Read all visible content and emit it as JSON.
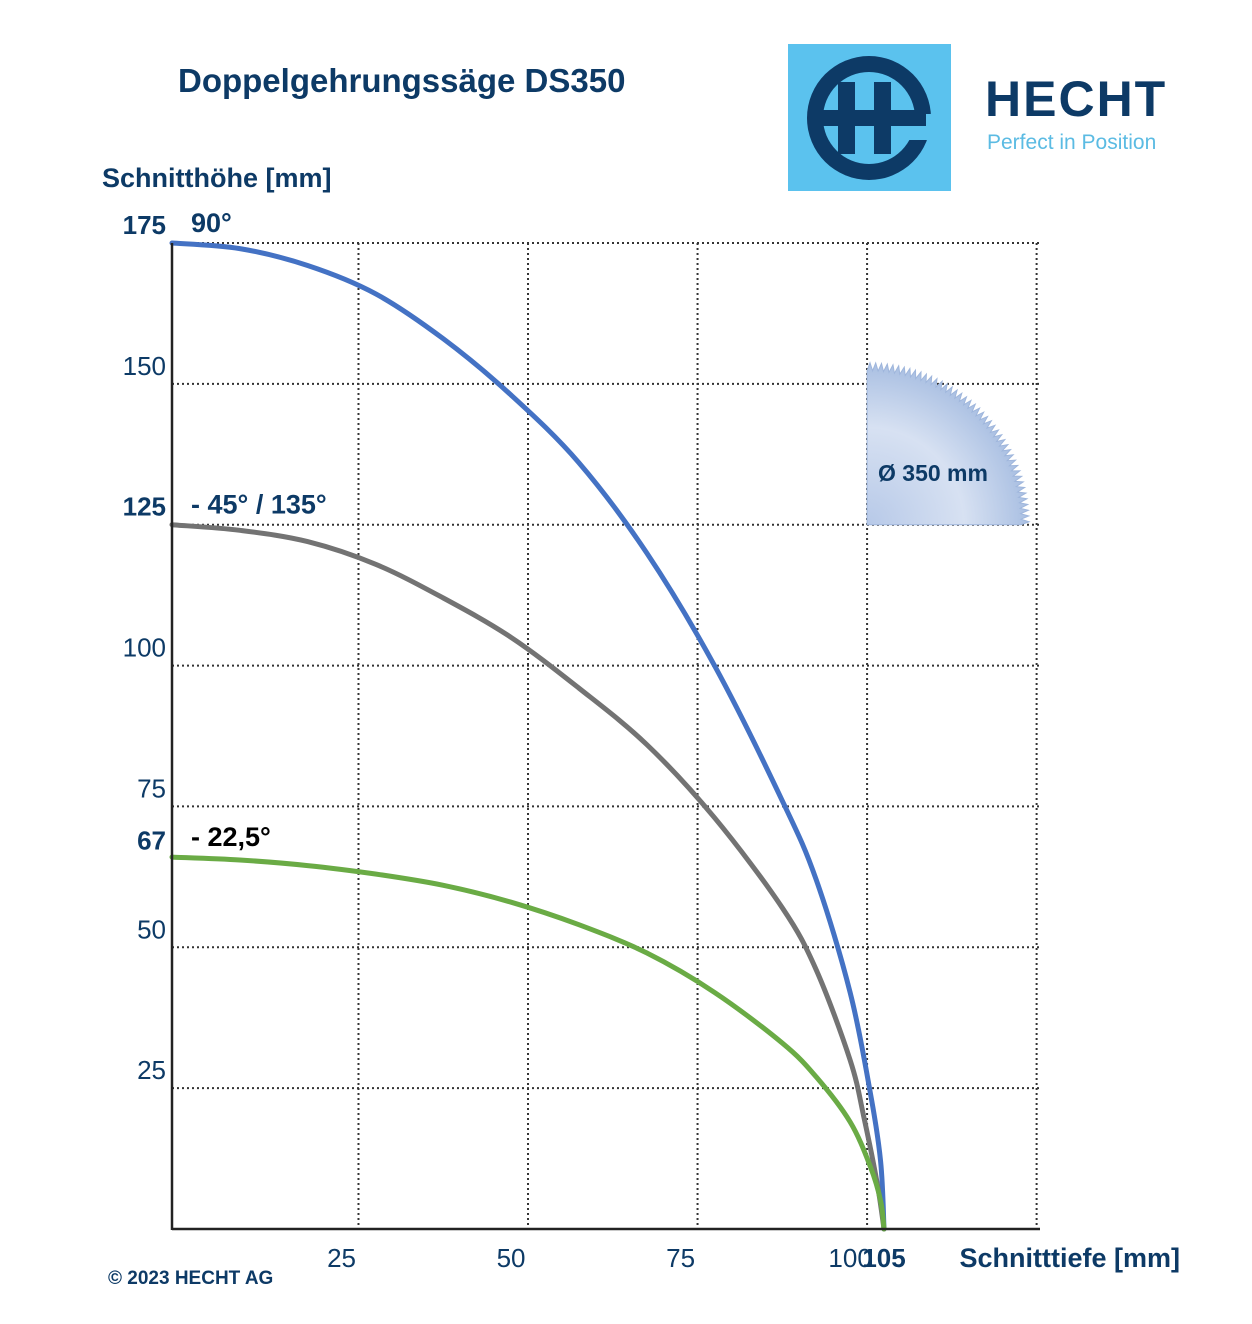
{
  "header": {
    "title": "Doppelgehrungssäge DS350"
  },
  "logo": {
    "icon": "hecht-logo-icon",
    "name": "HECHT",
    "slogan": "Perfect in Position",
    "background_color": "#5bc2ee",
    "mark_color": "#0d3a66"
  },
  "footer": {
    "copyright": "© 2023 HECHT AG"
  },
  "blade": {
    "icon": "saw-blade-icon",
    "label": "Ø 350 mm"
  },
  "chart_data": {
    "type": "line",
    "ylabel": "Schnitthöhe [mm]",
    "xlabel": "Schnitttiefe [mm]",
    "xlim": [
      0,
      128
    ],
    "ylim": [
      0,
      175
    ],
    "x_ticks": [
      {
        "value": 25,
        "label": "25",
        "bold": false
      },
      {
        "value": 50,
        "label": "50",
        "bold": false
      },
      {
        "value": 75,
        "label": "75",
        "bold": false
      },
      {
        "value": 100,
        "label": "100",
        "bold": false
      },
      {
        "value": 105,
        "label": "105",
        "bold": true
      }
    ],
    "y_ticks": [
      {
        "value": 25,
        "label": "25",
        "bold": false
      },
      {
        "value": 50,
        "label": "50",
        "bold": false
      },
      {
        "value": 67,
        "label": "67",
        "bold": true
      },
      {
        "value": 75,
        "label": "75",
        "bold": false
      },
      {
        "value": 100,
        "label": "100",
        "bold": false
      },
      {
        "value": 125,
        "label": "125",
        "bold": true
      },
      {
        "value": 150,
        "label": "150",
        "bold": false
      },
      {
        "value": 175,
        "label": "175",
        "bold": true
      }
    ],
    "grid_x": [
      27.5,
      52.5,
      77.5,
      102.5,
      127.5
    ],
    "grid_y": [
      25,
      50,
      75,
      100,
      125,
      150,
      175
    ],
    "grid": true,
    "series": [
      {
        "name": "90°",
        "color": "#4472c4",
        "label_color": "#0d3a66",
        "points": [
          [
            0,
            175
          ],
          [
            10,
            174
          ],
          [
            20,
            171
          ],
          [
            30,
            166
          ],
          [
            40,
            158
          ],
          [
            50,
            148
          ],
          [
            60,
            136
          ],
          [
            70,
            120
          ],
          [
            80,
            100
          ],
          [
            90,
            76
          ],
          [
            95,
            62
          ],
          [
            100,
            42
          ],
          [
            103,
            24
          ],
          [
            104.5,
            12
          ],
          [
            105,
            0
          ]
        ]
      },
      {
        "name": "- 45° / 135°",
        "color": "#737373",
        "label_color": "#0d3a66",
        "points": [
          [
            0,
            125
          ],
          [
            10,
            124
          ],
          [
            20,
            122
          ],
          [
            30,
            118
          ],
          [
            40,
            112
          ],
          [
            50,
            105
          ],
          [
            60,
            96
          ],
          [
            70,
            86
          ],
          [
            80,
            73
          ],
          [
            90,
            57
          ],
          [
            95,
            46
          ],
          [
            100,
            30
          ],
          [
            102,
            20
          ],
          [
            104,
            8
          ],
          [
            105,
            0
          ]
        ]
      },
      {
        "name": "- 22,5°",
        "color": "#6aab45",
        "label_color": "#000000",
        "points": [
          [
            0,
            66
          ],
          [
            10,
            65.5
          ],
          [
            20,
            64.5
          ],
          [
            30,
            63
          ],
          [
            40,
            61
          ],
          [
            50,
            58
          ],
          [
            60,
            54
          ],
          [
            70,
            49
          ],
          [
            80,
            42
          ],
          [
            90,
            33
          ],
          [
            95,
            27
          ],
          [
            100,
            19
          ],
          [
            103,
            11
          ],
          [
            104.5,
            5
          ],
          [
            105,
            0
          ]
        ]
      }
    ]
  }
}
